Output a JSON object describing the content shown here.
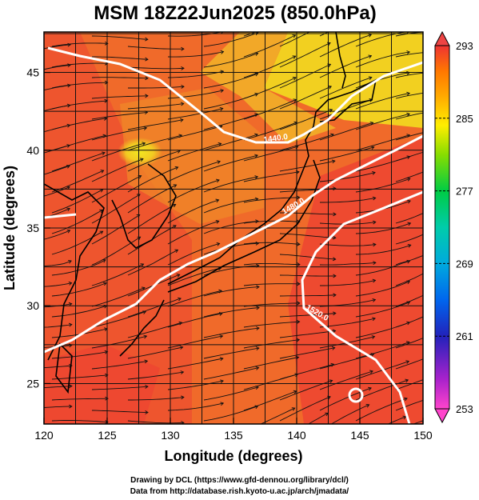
{
  "title": "MSM 18Z22Jun2025 (850.0hPa)",
  "x_axis": {
    "label": "Longitude (degrees)",
    "ticks": [
      "120",
      "125",
      "130",
      "135",
      "140",
      "145",
      "150"
    ],
    "range": [
      120,
      150
    ]
  },
  "y_axis": {
    "label": "Latitude (degrees)",
    "ticks": [
      "25",
      "30",
      "35",
      "40",
      "45"
    ],
    "range": [
      22.4,
      47.6
    ]
  },
  "colorbar": {
    "ticks": [
      "293",
      "285",
      "277",
      "269",
      "261",
      "253"
    ],
    "range": [
      253,
      293
    ],
    "colors": [
      "#ff44cc",
      "#aa22cc",
      "#2222bb",
      "#0066ee",
      "#00aadd",
      "#00ccaa",
      "#00cc44",
      "#88dd00",
      "#ffee00",
      "#ffaa00",
      "#ff7700",
      "#ee3333"
    ]
  },
  "contour_labels": [
    "1440.0",
    "1480.0",
    "1520.0"
  ],
  "credits": {
    "line1": "Drawing by DCL (https://www.gfd-dennou.org/library/dcl/)",
    "line2": "Data from http://database.rish.kyoto-u.ac.jp/arch/jmadata/"
  }
}
